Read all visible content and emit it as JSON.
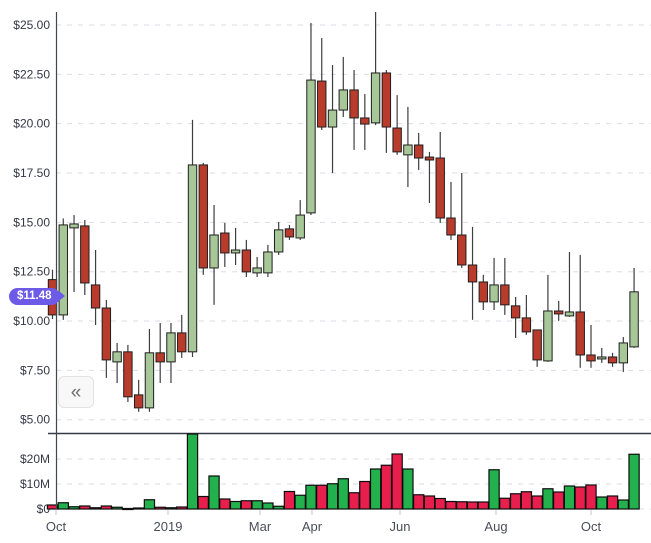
{
  "chart_data": {
    "type": "candlestick",
    "subtype": "weekly-price-with-volume-subpanel",
    "title": "",
    "xlabel": "",
    "ylabel": "",
    "legend": "none",
    "grid": "dashed-horizontal",
    "current_price": {
      "label": "$11.48",
      "value": 11.48
    },
    "price_axis": {
      "range": [
        4.6,
        25.8
      ],
      "ticks": [
        [
          "$25.00",
          25
        ],
        [
          "$22.50",
          22.5
        ],
        [
          "$20.00",
          20
        ],
        [
          "$17.50",
          17.5
        ],
        [
          "$15.00",
          15
        ],
        [
          "$12.50",
          12.5
        ],
        [
          "$10.00",
          10
        ],
        [
          "$7.50",
          7.5
        ],
        [
          "$5.00",
          5
        ]
      ]
    },
    "volume_axis": {
      "range": [
        0,
        30
      ],
      "unit": "millions USD",
      "ticks": [
        [
          "$20M",
          20
        ],
        [
          "$10M",
          10
        ],
        [
          "$0",
          0
        ]
      ]
    },
    "time_axis": {
      "labels": [
        [
          "Oct",
          56
        ],
        [
          "2019",
          168
        ],
        [
          "Mar",
          260
        ],
        [
          "Apr",
          312
        ],
        [
          "Jun",
          400
        ],
        [
          "Aug",
          496
        ],
        [
          "Oct",
          591
        ]
      ]
    },
    "candles_ohlc": [
      [
        12.1,
        12.6,
        10.1,
        10.31
      ],
      [
        10.31,
        15.2,
        10.06,
        14.87
      ],
      [
        14.72,
        15.37,
        11.47,
        14.92
      ],
      [
        14.82,
        15.12,
        11.32,
        11.93
      ],
      [
        11.83,
        13.6,
        9.8,
        10.66
      ],
      [
        10.66,
        11.07,
        7.12,
        8.03
      ],
      [
        7.93,
        8.89,
        6.86,
        8.44
      ],
      [
        8.44,
        8.79,
        5.9,
        6.16
      ],
      [
        6.26,
        7.02,
        5.4,
        5.6
      ],
      [
        5.6,
        9.6,
        5.4,
        8.39
      ],
      [
        8.39,
        9.9,
        6.86,
        7.93
      ],
      [
        7.93,
        9.9,
        6.86,
        9.4
      ],
      [
        9.4,
        10.31,
        8.13,
        8.44
      ],
      [
        8.44,
        20.19,
        8.18,
        17.91
      ],
      [
        17.91,
        18.01,
        12.34,
        12.69
      ],
      [
        12.69,
        15.88,
        10.82,
        14.36
      ],
      [
        14.46,
        14.97,
        12.74,
        13.45
      ],
      [
        13.45,
        14.72,
        12.84,
        13.6
      ],
      [
        13.6,
        14.11,
        12.23,
        12.49
      ],
      [
        12.44,
        13.25,
        12.23,
        12.69
      ],
      [
        12.44,
        13.86,
        12.23,
        13.5
      ],
      [
        13.5,
        15.02,
        13.35,
        14.62
      ],
      [
        14.67,
        14.87,
        14.11,
        14.26
      ],
      [
        14.21,
        16.13,
        14.11,
        15.37
      ],
      [
        15.48,
        25.1,
        15.37,
        22.21
      ],
      [
        22.16,
        24.34,
        19.68,
        19.83
      ],
      [
        19.83,
        22.97,
        17.5,
        20.69
      ],
      [
        20.69,
        23.38,
        20.34,
        21.71
      ],
      [
        21.71,
        22.72,
        18.67,
        20.29
      ],
      [
        20.29,
        21.5,
        18.67,
        19.98
      ],
      [
        20.04,
        25.66,
        19.93,
        22.57
      ],
      [
        22.57,
        22.72,
        18.52,
        19.83
      ],
      [
        19.78,
        21.45,
        18.42,
        18.57
      ],
      [
        18.42,
        20.85,
        16.79,
        18.92
      ],
      [
        18.92,
        19.53,
        17.65,
        18.26
      ],
      [
        18.31,
        18.57,
        15.98,
        18.16
      ],
      [
        18.26,
        19.58,
        14.97,
        15.22
      ],
      [
        15.22,
        17.05,
        14.11,
        14.36
      ],
      [
        14.36,
        17.5,
        12.69,
        12.84
      ],
      [
        12.84,
        14.77,
        10.06,
        11.98
      ],
      [
        11.98,
        12.34,
        10.56,
        10.97
      ],
      [
        10.97,
        13.2,
        10.56,
        11.83
      ],
      [
        11.83,
        13.2,
        10.31,
        10.82
      ],
      [
        10.77,
        11.22,
        9.14,
        10.16
      ],
      [
        10.16,
        11.32,
        9.3,
        9.45
      ],
      [
        9.55,
        9.55,
        7.68,
        8.03
      ],
      [
        7.98,
        12.34,
        7.93,
        10.51
      ],
      [
        10.51,
        11.02,
        10.01,
        10.36
      ],
      [
        10.26,
        13.5,
        10.21,
        10.46
      ],
      [
        10.46,
        13.35,
        7.63,
        8.28
      ],
      [
        8.28,
        9.8,
        7.63,
        7.98
      ],
      [
        8.08,
        8.64,
        7.88,
        8.18
      ],
      [
        8.18,
        8.39,
        7.68,
        7.88
      ],
      [
        7.88,
        9.19,
        7.42,
        8.89
      ],
      [
        8.69,
        12.69,
        8.64,
        11.48
      ]
    ],
    "volumes_musd": [
      [
        1.6,
        "down"
      ],
      [
        2.5,
        "up"
      ],
      [
        0.9,
        "up"
      ],
      [
        1.2,
        "down"
      ],
      [
        0.5,
        "down"
      ],
      [
        1.2,
        "down"
      ],
      [
        0.7,
        "up"
      ],
      [
        0.2,
        "down"
      ],
      [
        0.4,
        "down"
      ],
      [
        3.7,
        "up"
      ],
      [
        0.7,
        "down"
      ],
      [
        0.5,
        "up"
      ],
      [
        0.8,
        "down"
      ],
      [
        30.0,
        "up"
      ],
      [
        5.0,
        "down"
      ],
      [
        13.2,
        "up"
      ],
      [
        4.0,
        "down"
      ],
      [
        3.0,
        "up"
      ],
      [
        3.3,
        "down"
      ],
      [
        3.3,
        "up"
      ],
      [
        2.4,
        "up"
      ],
      [
        1.1,
        "up"
      ],
      [
        7.0,
        "down"
      ],
      [
        5.5,
        "up"
      ],
      [
        9.5,
        "up"
      ],
      [
        9.5,
        "down"
      ],
      [
        10.1,
        "up"
      ],
      [
        12.1,
        "up"
      ],
      [
        6.5,
        "down"
      ],
      [
        11.0,
        "down"
      ],
      [
        16.0,
        "up"
      ],
      [
        17.5,
        "down"
      ],
      [
        22.0,
        "down"
      ],
      [
        16.0,
        "up"
      ],
      [
        5.7,
        "down"
      ],
      [
        5.2,
        "down"
      ],
      [
        4.2,
        "down"
      ],
      [
        3.0,
        "down"
      ],
      [
        2.9,
        "down"
      ],
      [
        2.8,
        "down"
      ],
      [
        2.8,
        "down"
      ],
      [
        15.7,
        "up"
      ],
      [
        4.3,
        "down"
      ],
      [
        6.1,
        "down"
      ],
      [
        6.9,
        "down"
      ],
      [
        5.2,
        "down"
      ],
      [
        8.1,
        "up"
      ],
      [
        6.8,
        "down"
      ],
      [
        9.2,
        "up"
      ],
      [
        8.8,
        "down"
      ],
      [
        9.6,
        "down"
      ],
      [
        4.8,
        "up"
      ],
      [
        5.2,
        "down"
      ],
      [
        3.6,
        "up"
      ],
      [
        21.9,
        "up"
      ]
    ]
  },
  "controls": {
    "collapse_label": "«"
  },
  "colors": {
    "candle_up_fill": "#A8C798",
    "candle_down_fill": "#B93B2B",
    "candle_border": "#1F1F1F",
    "wick": "#3E3E42",
    "volume_up": "#22B14C",
    "volume_down": "#E81E4D",
    "volume_border": "#0D0D0D",
    "badge_bg": "#6D5BE8",
    "badge_text": "#FFFFFF",
    "grid": "#DADEE3",
    "axis_line": "#42464E",
    "separator": "#363A45",
    "axis_label": "#343845",
    "time_label": "#4A4E59",
    "tick_mark": "#C4C7CD",
    "button_bg": "#F8F8F8",
    "button_border": "#E2E2E2",
    "button_icon": "#6F6F6F",
    "background": "#FFFFFF"
  }
}
